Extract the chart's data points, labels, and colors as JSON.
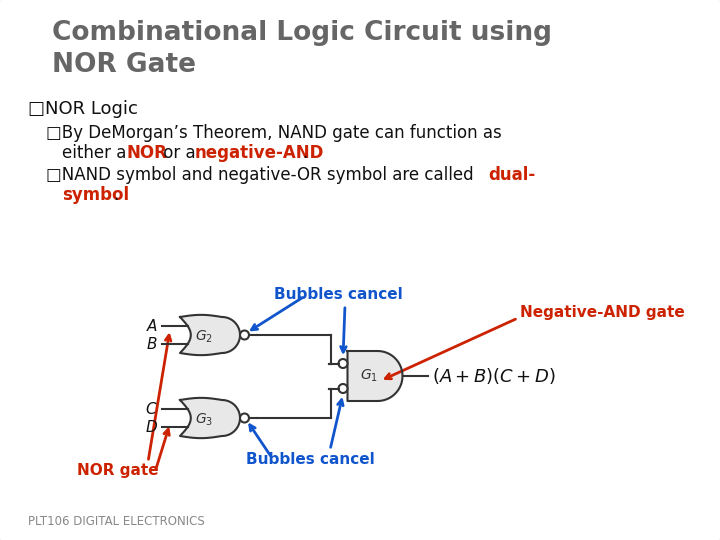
{
  "title_line1": "Combinational Logic Circuit using",
  "title_line2": "NOR Gate",
  "title_color": "#666666",
  "bg_color": "#f0f0f0",
  "red_color": "#cc2200",
  "blue_color": "#1155cc",
  "black_color": "#111111",
  "gray_color": "#888888",
  "label_bubbles_cancel_top": "Bubbles cancel",
  "label_neg_and": "Negative-AND gate",
  "label_bubbles_cancel_bot": "Bubbles cancel",
  "label_nor_gate": "NOR gate",
  "footer": "PLT106 DIGITAL ELECTRONICS",
  "fig_w": 7.2,
  "fig_h": 5.4,
  "dpi": 100
}
